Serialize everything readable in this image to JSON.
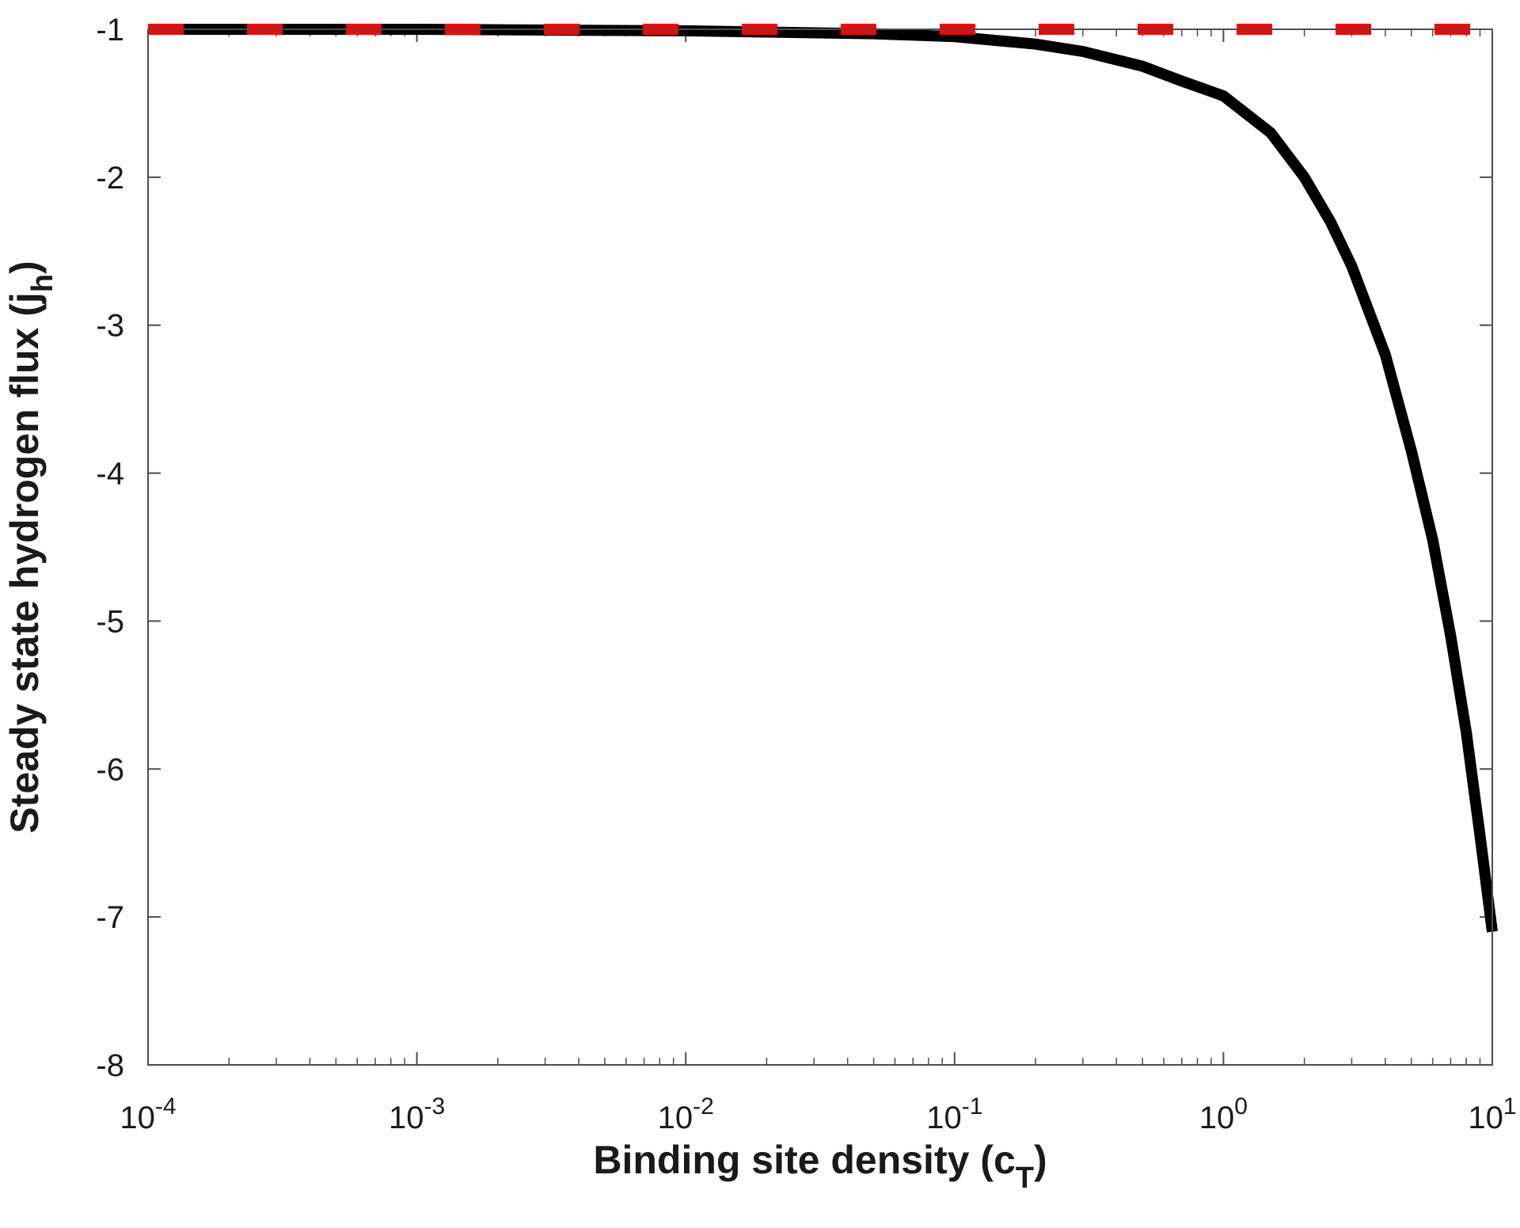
{
  "chart_data": {
    "type": "line",
    "xscale": "log",
    "xlim": [
      0.0001,
      10
    ],
    "ylim": [
      -8,
      -1
    ],
    "xlabel": {
      "text": "Binding site density (c",
      "sub": "T",
      "suffix": ")"
    },
    "ylabel": {
      "text": "Steady state hydrogen flux (j",
      "sub": "h",
      "suffix": ")"
    },
    "xticks": [
      {
        "value": 0.0001,
        "base": "10",
        "exp": "-4"
      },
      {
        "value": 0.001,
        "base": "10",
        "exp": "-3"
      },
      {
        "value": 0.01,
        "base": "10",
        "exp": "-2"
      },
      {
        "value": 0.1,
        "base": "10",
        "exp": "-1"
      },
      {
        "value": 1,
        "base": "10",
        "exp": "0"
      },
      {
        "value": 10,
        "base": "10",
        "exp": "1"
      }
    ],
    "yticks": [
      {
        "value": -1,
        "label": "-1"
      },
      {
        "value": -2,
        "label": "-2"
      },
      {
        "value": -3,
        "label": "-3"
      },
      {
        "value": -4,
        "label": "-4"
      },
      {
        "value": -5,
        "label": "-5"
      },
      {
        "value": -6,
        "label": "-6"
      },
      {
        "value": -7,
        "label": "-7"
      },
      {
        "value": -8,
        "label": "-8"
      }
    ],
    "grid": false,
    "series": [
      {
        "style": "solid",
        "color": "#000000",
        "x": [
          0.0001,
          0.001,
          0.01,
          0.05,
          0.1,
          0.2,
          0.3,
          0.5,
          0.7,
          1,
          1.5,
          2,
          2.5,
          3,
          4,
          5,
          6,
          7,
          8,
          9,
          10
        ],
        "y": [
          -1.0,
          -1.0,
          -1.01,
          -1.03,
          -1.05,
          -1.1,
          -1.15,
          -1.25,
          -1.35,
          -1.45,
          -1.7,
          -2.0,
          -2.3,
          -2.6,
          -3.2,
          -3.85,
          -4.45,
          -5.1,
          -5.75,
          -6.45,
          -7.1
        ]
      },
      {
        "style": "dashed",
        "color": "#ff0000",
        "x": [
          0.0001,
          10
        ],
        "y": [
          -1.0,
          -1.0
        ]
      }
    ]
  }
}
